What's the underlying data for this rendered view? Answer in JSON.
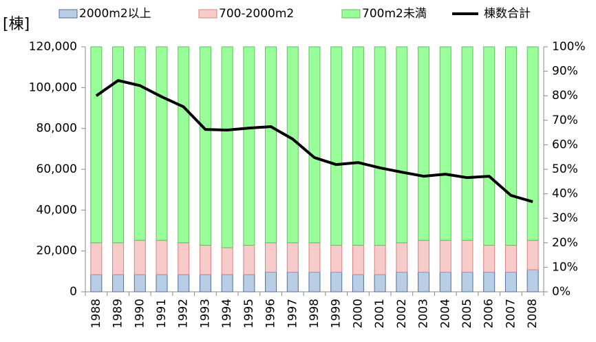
{
  "chart_data": {
    "type": "bar",
    "stacked": true,
    "y_axis_label": "[棟]",
    "categories": [
      "1988",
      "1989",
      "1990",
      "1991",
      "1992",
      "1993",
      "1994",
      "1995",
      "1996",
      "1997",
      "1998",
      "1999",
      "2000",
      "2001",
      "2002",
      "2003",
      "2004",
      "2005",
      "2006",
      "2007",
      "2008"
    ],
    "series": [
      {
        "name": "2000m2以上",
        "type": "bar",
        "axis": "y2",
        "color": "#b9cde5",
        "edge": "#4f6d9a",
        "values": [
          7,
          7,
          7,
          7,
          7,
          7,
          7,
          7,
          8,
          8,
          8,
          8,
          7,
          7,
          8,
          8,
          8,
          8,
          8,
          8,
          9
        ]
      },
      {
        "name": "700-2000m2",
        "type": "bar",
        "axis": "y2",
        "color": "#f8cbcb",
        "edge": "#d98080",
        "values": [
          13,
          13,
          14,
          14,
          13,
          12,
          11,
          12,
          12,
          12,
          12,
          11,
          12,
          12,
          12,
          13,
          13,
          13,
          11,
          11,
          12
        ]
      },
      {
        "name": "700m2未満",
        "type": "bar",
        "axis": "y2",
        "color": "#99ff99",
        "edge": "#66bb66",
        "values": [
          80,
          80,
          79,
          79,
          80,
          81,
          82,
          81,
          80,
          80,
          80,
          81,
          81,
          81,
          80,
          79,
          79,
          79,
          81,
          81,
          79
        ]
      },
      {
        "name": "棟数合計",
        "type": "line",
        "axis": "y",
        "color": "#000000",
        "values": [
          96000,
          103500,
          101000,
          95500,
          90600,
          79500,
          79200,
          80200,
          80900,
          74800,
          65700,
          62300,
          63300,
          60700,
          58600,
          56600,
          57600,
          55900,
          56600,
          47200,
          44100
        ]
      }
    ],
    "ylim": [
      0,
      120000
    ],
    "yticks": [
      0,
      {
        "value": 20000,
        "label": "20,000"
      },
      {
        "value": 40000,
        "label": "40,000"
      },
      {
        "value": 60000,
        "label": "60,000"
      },
      {
        "value": 80000,
        "label": "80,000"
      },
      {
        "value": 100000,
        "label": "100,000"
      },
      {
        "value": 120000,
        "label": "120,000"
      }
    ],
    "y2lim": [
      0,
      100
    ],
    "y2ticks": [
      {
        "value": 0,
        "label": "0%"
      },
      {
        "value": 10,
        "label": "10%"
      },
      {
        "value": 20,
        "label": "20%"
      },
      {
        "value": 30,
        "label": "30%"
      },
      {
        "value": 40,
        "label": "40%"
      },
      {
        "value": 50,
        "label": "50%"
      },
      {
        "value": 60,
        "label": "60%"
      },
      {
        "value": 70,
        "label": "70%"
      },
      {
        "value": 80,
        "label": "80%"
      },
      {
        "value": 90,
        "label": "90%"
      },
      {
        "value": 100,
        "label": "100%"
      }
    ],
    "legend": "top"
  }
}
